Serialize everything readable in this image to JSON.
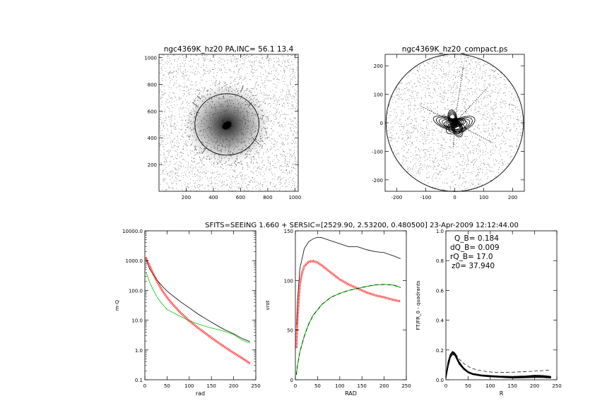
{
  "header": {
    "text": "SFITS=SEEING 1.660 + SERSIC=[2529.90, 2.53200, 0.480500]  23-Apr-2009 12:12:44.00"
  },
  "chart_data": [
    {
      "id": "image_panel",
      "type": "scatter",
      "title": "ngc4369K_hz20 PA,INC= 56.1 13.4",
      "xlabel": "",
      "ylabel": "",
      "xlim": [
        0,
        1024
      ],
      "ylim": [
        0,
        1024
      ],
      "xticks": [
        200,
        400,
        600,
        800,
        1000
      ],
      "yticks": [
        200,
        400,
        600,
        800,
        1000
      ],
      "annotations": {
        "ellipse": {
          "center": [
            500,
            500
          ],
          "semi_major": 236,
          "semi_minor": 230
        },
        "radial_ticks": [
          [
            290,
            630,
            245,
            665
          ],
          [
            655,
            630,
            685,
            665
          ],
          [
            600,
            740,
            620,
            790
          ],
          [
            350,
            330,
            315,
            280
          ],
          [
            690,
            395,
            735,
            355
          ],
          [
            305,
            690,
            280,
            715
          ]
        ]
      }
    },
    {
      "id": "compact_panel",
      "type": "scatter",
      "title": "ngc4369K_hz20_compact.ps",
      "xlabel": "",
      "ylabel": "",
      "xlim": [
        -240,
        240
      ],
      "ylim": [
        -240,
        240
      ],
      "xticks": [
        -200,
        -100,
        0,
        100,
        200
      ],
      "yticks": [
        -200,
        -100,
        0,
        100,
        200
      ],
      "annotations": {
        "circle_radius": 237
      }
    },
    {
      "id": "profile_panel",
      "type": "line",
      "xlabel": "rad",
      "ylabel": "m-Q",
      "log_y": true,
      "xlim": [
        0,
        250
      ],
      "ylim": [
        0.1,
        10000
      ],
      "xticks": [
        0,
        50,
        100,
        150,
        200,
        250
      ],
      "yticks": [
        0.1,
        1.0,
        10.0,
        100.0,
        1000.0,
        10000.0
      ],
      "ytick_labels": [
        "0.1",
        "1.0",
        "10.0",
        "100.0",
        "1000.0",
        "10000.0"
      ],
      "series": [
        {
          "color": "#000000",
          "x": [
            3,
            10,
            20,
            30,
            40,
            50,
            60,
            80,
            100,
            120,
            140,
            160,
            180,
            200,
            220,
            237
          ],
          "y": [
            1100,
            550,
            320,
            200,
            135,
            95,
            72,
            42,
            26,
            16,
            10.5,
            7.0,
            4.8,
            3.5,
            2.4,
            1.9
          ]
        },
        {
          "color": "#00cc00",
          "x": [
            3,
            10,
            20,
            30,
            40,
            50,
            60,
            80,
            100,
            120,
            140,
            160,
            180,
            200,
            220,
            237
          ],
          "y": [
            400,
            200,
            95,
            52,
            34,
            23,
            19,
            13.5,
            9.5,
            7.5,
            6.0,
            5.0,
            4.2,
            3.3,
            2.1,
            1.7
          ]
        },
        {
          "color": "#ff0000",
          "x": [
            2,
            5,
            10,
            20,
            30,
            40,
            50,
            60,
            80,
            100,
            120,
            140,
            160,
            180,
            200,
            220,
            237
          ],
          "y": [
            1300,
            950,
            700,
            330,
            170,
            95,
            58,
            38,
            18,
            9.5,
            5.5,
            3.3,
            2.0,
            1.25,
            0.8,
            0.52,
            0.35
          ]
        }
      ]
    },
    {
      "id": "rotation_panel",
      "type": "line",
      "xlabel": "RAD",
      "ylabel": "vrot",
      "xlim": [
        0,
        250
      ],
      "ylim": [
        0,
        150
      ],
      "xticks": [
        0,
        50,
        100,
        150,
        200,
        250
      ],
      "yticks": [
        0,
        50,
        100,
        150
      ],
      "series": [
        {
          "color": "#000000",
          "x": [
            3,
            5,
            10,
            20,
            30,
            40,
            50,
            60,
            80,
            100,
            120,
            140,
            160,
            180,
            200,
            220,
            237
          ],
          "y": [
            55,
            80,
            112,
            132,
            139,
            142,
            143.5,
            143,
            140,
            137,
            134,
            134,
            131,
            129,
            128,
            125,
            122
          ]
        },
        {
          "color": "#ff0000",
          "x": [
            2,
            5,
            10,
            15,
            20,
            30,
            40,
            50,
            60,
            80,
            100,
            120,
            140,
            160,
            180,
            200,
            220,
            237
          ],
          "y": [
            32,
            65,
            96,
            108,
            114,
            119,
            119.5,
            118,
            115,
            108,
            101,
            96,
            92,
            88,
            85,
            83,
            80.5,
            79
          ]
        },
        {
          "color": "#00cc00",
          "dashed": true,
          "x": [
            2,
            5,
            10,
            20,
            30,
            40,
            60,
            80,
            100,
            120,
            140,
            160,
            180,
            200,
            220,
            237
          ],
          "y": [
            5,
            15,
            28,
            44,
            56,
            65,
            76,
            83,
            87,
            90,
            92,
            94,
            95.5,
            96,
            95.5,
            93
          ]
        }
      ]
    },
    {
      "id": "fourier_panel",
      "type": "line",
      "xlabel": "R",
      "ylabel": "FT/FR_0 - quadrants",
      "xlim": [
        0,
        250
      ],
      "ylim": [
        0,
        1.0
      ],
      "xticks": [
        0,
        50,
        100,
        150,
        200,
        250
      ],
      "yticks": [
        0.0,
        0.2,
        0.4,
        0.6,
        0.8,
        1.0
      ],
      "ytick_labels": [
        "0.0",
        "0.2",
        "0.4",
        "0.6",
        "0.8",
        "1.0"
      ],
      "stats": [
        "Q_B=  0.184",
        "dQ_B=  0.009",
        "rQ_B=   17.0",
        "z0= 37.940"
      ],
      "series": [
        {
          "color": "#000000",
          "x": [
            0,
            5,
            10,
            15,
            20,
            25,
            30,
            40,
            50,
            60,
            80,
            100,
            120,
            150,
            180,
            200,
            220,
            237
          ],
          "y": [
            0.02,
            0.1,
            0.16,
            0.185,
            0.175,
            0.145,
            0.115,
            0.075,
            0.052,
            0.04,
            0.028,
            0.022,
            0.018,
            0.015,
            0.017,
            0.02,
            0.018,
            0.015
          ]
        },
        {
          "color": "#000000",
          "x": [
            0,
            5,
            10,
            15,
            20,
            25,
            30,
            40,
            50,
            60,
            80,
            100,
            120,
            150,
            180,
            200,
            220,
            237
          ],
          "y": [
            0.03,
            0.11,
            0.165,
            0.18,
            0.165,
            0.135,
            0.105,
            0.07,
            0.05,
            0.038,
            0.03,
            0.025,
            0.022,
            0.02,
            0.022,
            0.025,
            0.022,
            0.018
          ]
        },
        {
          "color": "#000000",
          "x": [
            0,
            5,
            10,
            15,
            20,
            25,
            30,
            40,
            50,
            60,
            80,
            100,
            120,
            150,
            180,
            200,
            220,
            237
          ],
          "y": [
            0.01,
            0.09,
            0.15,
            0.17,
            0.165,
            0.14,
            0.11,
            0.072,
            0.048,
            0.035,
            0.025,
            0.02,
            0.017,
            0.012,
            0.014,
            0.016,
            0.015,
            0.012
          ]
        },
        {
          "color": "#000000",
          "x": [
            0,
            5,
            10,
            15,
            20,
            25,
            30,
            40,
            50,
            60,
            80,
            100,
            120,
            150,
            180,
            200,
            220,
            237
          ],
          "y": [
            0.02,
            0.12,
            0.17,
            0.19,
            0.18,
            0.15,
            0.12,
            0.08,
            0.055,
            0.042,
            0.032,
            0.028,
            0.024,
            0.022,
            0.025,
            0.03,
            0.028,
            0.022
          ]
        },
        {
          "color": "#000000",
          "dashed": true,
          "x": [
            0,
            5,
            10,
            15,
            20,
            25,
            30,
            40,
            50,
            60,
            80,
            100,
            120,
            140,
            160,
            180,
            200,
            220,
            237
          ],
          "y": [
            0.03,
            0.12,
            0.17,
            0.185,
            0.18,
            0.16,
            0.14,
            0.11,
            0.09,
            0.075,
            0.06,
            0.052,
            0.05,
            0.05,
            0.052,
            0.055,
            0.058,
            0.062,
            0.065
          ]
        }
      ]
    }
  ]
}
